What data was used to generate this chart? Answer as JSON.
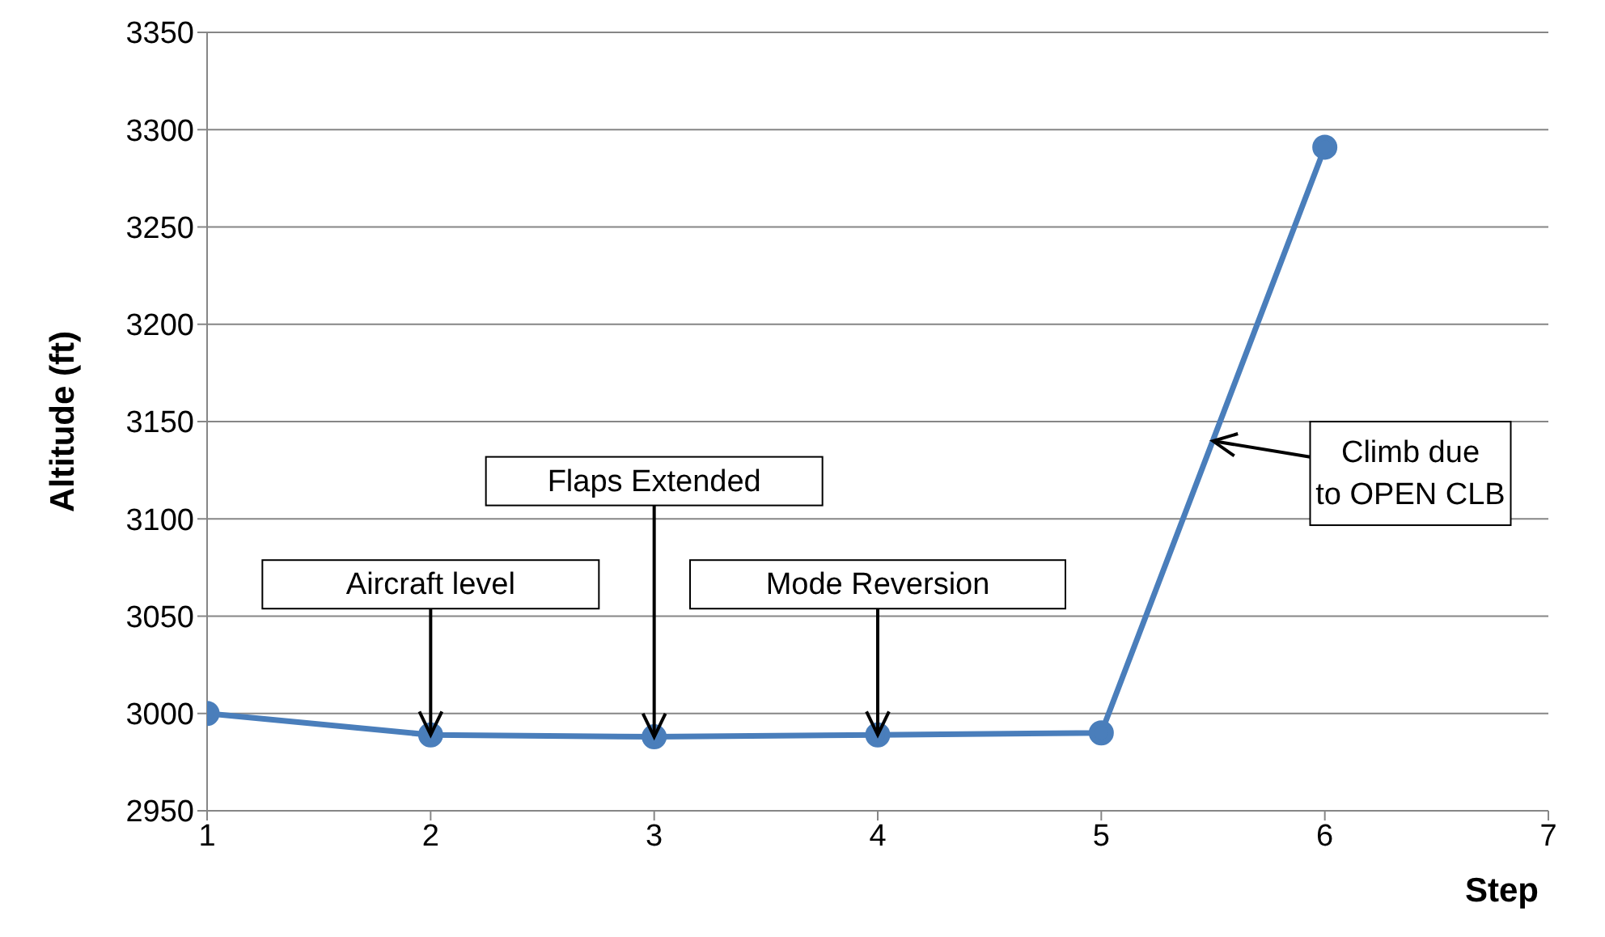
{
  "chart_data": {
    "type": "line",
    "xlabel": "Step",
    "ylabel": "Altitude (ft)",
    "x": [
      1,
      2,
      3,
      4,
      5,
      6
    ],
    "series": [
      {
        "color": "#4a7ebb",
        "values": [
          3000,
          2989,
          2988,
          2989,
          2990,
          3291
        ]
      }
    ],
    "xlim": [
      1,
      7
    ],
    "xticks": [
      1,
      2,
      3,
      4,
      5,
      6,
      7
    ],
    "ylim": [
      2950,
      3350
    ],
    "yticks": [
      2950,
      3000,
      3050,
      3100,
      3150,
      3200,
      3250,
      3300,
      3350
    ],
    "grid": "y",
    "legend": false,
    "marker": "circle",
    "line_style": "solid",
    "annotations": [
      {
        "text": "Aircraft level",
        "x": 2,
        "y": 2989
      },
      {
        "text": "Flaps Extended",
        "x": 3,
        "y": 2988
      },
      {
        "text": "Mode Reversion",
        "x": 4,
        "y": 2989
      },
      {
        "text": "Climb due to OPEN CLB",
        "x": 5.5,
        "y": 3140
      }
    ]
  }
}
